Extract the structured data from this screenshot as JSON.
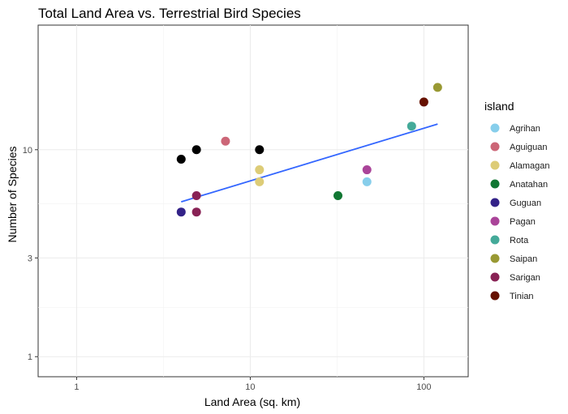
{
  "chart_data": {
    "type": "scatter",
    "title": "Total Land Area vs. Terrestrial Bird Species",
    "xlabel": "Land Area (sq. km)",
    "ylabel": "Number of Species",
    "x_scale": "log10",
    "y_scale": "log10",
    "xlim": [
      0.6,
      180
    ],
    "ylim": [
      0.8,
      40
    ],
    "x_ticks": [
      1,
      10,
      100
    ],
    "x_tick_labels": [
      "1",
      "10",
      "100"
    ],
    "y_ticks": [
      1,
      3,
      10
    ],
    "y_tick_labels": [
      "1",
      "3",
      "10"
    ],
    "grid": true,
    "legend": {
      "title": "island",
      "position": "right",
      "entries": [
        {
          "label": "Agrihan",
          "color": "#87ceeb"
        },
        {
          "label": "Aguiguan",
          "color": "#cc6677"
        },
        {
          "label": "Alamagan",
          "color": "#ddcc77"
        },
        {
          "label": "Anatahan",
          "color": "#117733"
        },
        {
          "label": "Guguan",
          "color": "#332288"
        },
        {
          "label": "Pagan",
          "color": "#aa4499"
        },
        {
          "label": "Rota",
          "color": "#44aa99"
        },
        {
          "label": "Saipan",
          "color": "#999933"
        },
        {
          "label": "Sarigan",
          "color": "#882255"
        },
        {
          "label": "Tinian",
          "color": "#661100"
        }
      ]
    },
    "points": [
      {
        "x": 4.0,
        "y": 9.0,
        "color": "#000000"
      },
      {
        "x": 4.9,
        "y": 10.0,
        "color": "#000000"
      },
      {
        "x": 11.3,
        "y": 10.0,
        "color": "#000000"
      },
      {
        "x": 4.0,
        "y": 5.0,
        "island": "Guguan"
      },
      {
        "x": 4.9,
        "y": 6.0,
        "island": "Sarigan"
      },
      {
        "x": 4.9,
        "y": 5.0,
        "island": "Sarigan"
      },
      {
        "x": 7.2,
        "y": 11.0,
        "island": "Aguiguan"
      },
      {
        "x": 11.3,
        "y": 8.0,
        "island": "Alamagan"
      },
      {
        "x": 11.3,
        "y": 7.0,
        "island": "Alamagan"
      },
      {
        "x": 32.0,
        "y": 6.0,
        "island": "Anatahan"
      },
      {
        "x": 47.0,
        "y": 7.0,
        "island": "Agrihan"
      },
      {
        "x": 47.0,
        "y": 8.0,
        "island": "Pagan"
      },
      {
        "x": 85.0,
        "y": 13.0,
        "island": "Rota"
      },
      {
        "x": 100.0,
        "y": 17.0,
        "island": "Tinian"
      },
      {
        "x": 120.0,
        "y": 20.0,
        "island": "Saipan"
      }
    ],
    "trend_line": {
      "color": "#3366ff",
      "x": [
        4.0,
        120.0
      ],
      "y": [
        5.6,
        13.3
      ]
    }
  }
}
